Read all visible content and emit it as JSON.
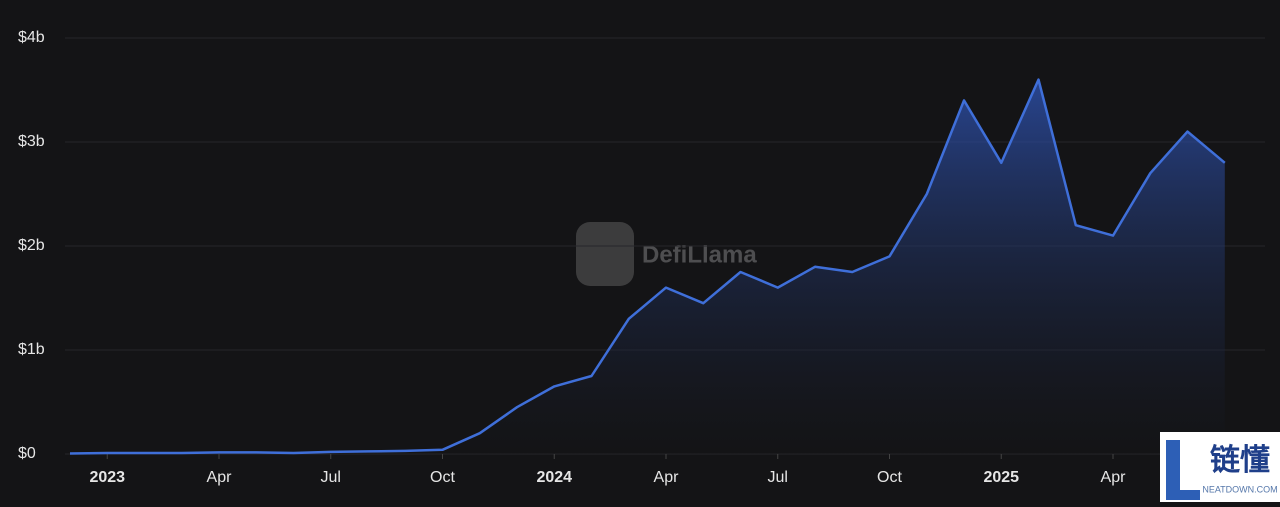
{
  "chart_data": {
    "type": "area",
    "watermark": "DefiLlama",
    "logo_text": "链懂",
    "logo_subtext": "NEATDOWN.COM",
    "x": [
      "2022-12",
      "2023-01",
      "2023-02",
      "2023-03",
      "2023-04",
      "2023-05",
      "2023-06",
      "2023-07",
      "2023-08",
      "2023-09",
      "2023-10",
      "2023-11",
      "2023-12",
      "2024-01",
      "2024-02",
      "2024-03",
      "2024-04",
      "2024-05",
      "2024-06",
      "2024-07",
      "2024-08",
      "2024-09",
      "2024-10",
      "2024-11",
      "2024-12",
      "2025-01",
      "2025-02",
      "2025-03",
      "2025-04",
      "2025-05",
      "2025-06",
      "2025-07"
    ],
    "series": [
      {
        "color": "#3f6fd9",
        "values": [
          0.005,
          0.01,
          0.01,
          0.01,
          0.015,
          0.015,
          0.01,
          0.02,
          0.025,
          0.03,
          0.04,
          0.2,
          0.45,
          0.65,
          0.75,
          1.3,
          1.6,
          1.45,
          1.75,
          1.6,
          1.8,
          1.75,
          1.9,
          2.5,
          3.4,
          2.8,
          3.6,
          2.2,
          2.1,
          2.7,
          3.1,
          2.8
        ]
      }
    ],
    "xlim": [
      "2022-12",
      "2025-08"
    ],
    "xticks": [
      {
        "value": "2023-01",
        "label": "2023"
      },
      {
        "value": "2023-04",
        "label": "Apr"
      },
      {
        "value": "2023-07",
        "label": "Jul"
      },
      {
        "value": "2023-10",
        "label": "Oct"
      },
      {
        "value": "2024-01",
        "label": "2024"
      },
      {
        "value": "2024-04",
        "label": "Apr"
      },
      {
        "value": "2024-07",
        "label": "Jul"
      },
      {
        "value": "2024-10",
        "label": "Oct"
      },
      {
        "value": "2025-01",
        "label": "2025"
      },
      {
        "value": "2025-04",
        "label": "Apr"
      }
    ],
    "ylim": [
      0,
      4
    ],
    "yticks": [
      {
        "value": 0,
        "label": "$0"
      },
      {
        "value": 1,
        "label": "$1b"
      },
      {
        "value": 2,
        "label": "$2b"
      },
      {
        "value": 3,
        "label": "$3b"
      },
      {
        "value": 4,
        "label": "$4b"
      }
    ],
    "grid": true
  }
}
